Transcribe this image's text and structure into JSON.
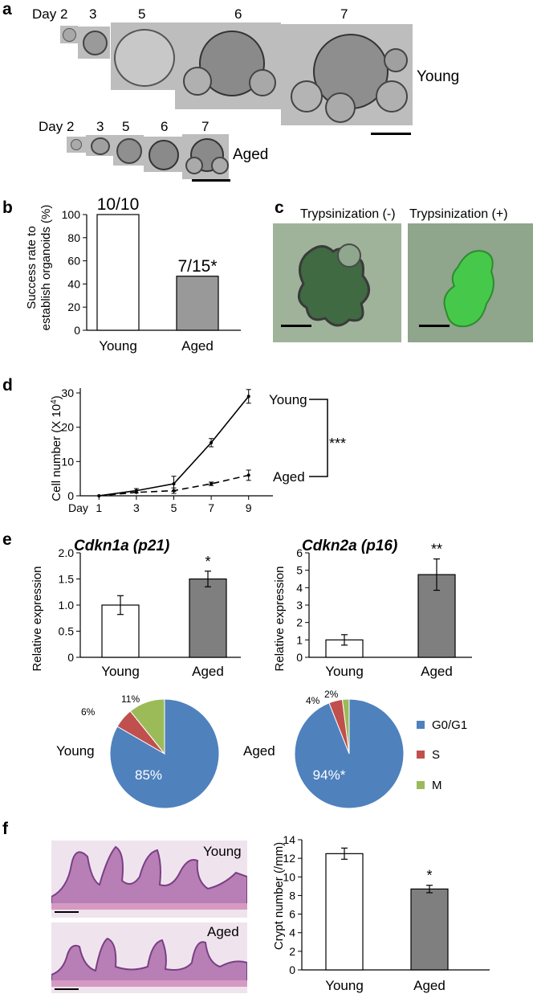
{
  "panel_a": {
    "letter": "a",
    "young_days": [
      "Day 2",
      "3",
      "5",
      "6",
      "7"
    ],
    "young_label": "Young",
    "aged_days": [
      "Day 2",
      "3",
      "5",
      "6",
      "7"
    ],
    "aged_label": "Aged"
  },
  "panel_b": {
    "letter": "b",
    "ylabel_line1": "Success rate to",
    "ylabel_line2": "establish organoids (%)",
    "yticks": [
      "0",
      "20",
      "40",
      "60",
      "80",
      "100"
    ],
    "categories": [
      "Young",
      "Aged"
    ],
    "values": [
      100,
      46.7
    ],
    "annotations": [
      "10/10",
      "7/15*"
    ],
    "colors": [
      "#ffffff",
      "#999999"
    ]
  },
  "panel_c": {
    "letter": "c",
    "left_title": "Trypsinization (-)",
    "right_title": "Trypsinization (+)"
  },
  "panel_d": {
    "letter": "d",
    "ylabel": "Cell number (X 10",
    "ylabel_sup": "4",
    "ylabel_close": ")",
    "yticks": [
      "0",
      "10",
      "20",
      "30"
    ],
    "xticks": [
      "Day",
      "1",
      "3",
      "5",
      "7",
      "9"
    ],
    "young_label": "Young",
    "aged_label": "Aged",
    "significance": "***"
  },
  "panel_e": {
    "letter": "e",
    "p21_title": "Cdkn1a (p21)",
    "p16_title": "Cdkn2a (p16)",
    "ylabel": "Relative expression",
    "p21_yticks": [
      "0",
      "0.5",
      "1.0",
      "1.5",
      "2.0"
    ],
    "p16_yticks": [
      "0",
      "1",
      "2",
      "3",
      "4",
      "5",
      "6"
    ],
    "categories": [
      "Young",
      "Aged"
    ],
    "p21_star": "*",
    "p16_star": "**",
    "pie_young_label": "Young",
    "pie_aged_label": "Aged",
    "young_pcts": [
      "85%",
      "6%",
      "11%"
    ],
    "aged_pcts": [
      "94%*",
      "4%",
      "2%"
    ],
    "legend": [
      "G0/G1",
      "S",
      "M"
    ],
    "legend_colors": [
      "#4f81bd",
      "#c0504d",
      "#9bbb59"
    ]
  },
  "panel_f": {
    "letter": "f",
    "young_label": "Young",
    "aged_label": "Aged",
    "ylabel": "Crypt number (/mm)",
    "yticks": [
      "0",
      "2",
      "4",
      "6",
      "8",
      "10",
      "12",
      "14"
    ],
    "categories": [
      "Young",
      "Aged"
    ],
    "star": "*"
  },
  "chart_data": [
    {
      "type": "bar",
      "categories": [
        "Young",
        "Aged"
      ],
      "values": [
        100,
        46.7
      ],
      "ylabel": "Success rate to establish organoids (%)",
      "ylim": [
        0,
        100
      ],
      "annotations": [
        "10/10",
        "7/15*"
      ]
    },
    {
      "type": "line",
      "x": [
        1,
        3,
        5,
        7,
        9
      ],
      "xlabel": "Day",
      "ylabel": "Cell number (X 10^4)",
      "ylim": [
        0,
        30
      ],
      "series": [
        {
          "name": "Young",
          "values": [
            0,
            1.5,
            3.5,
            15.5,
            29
          ],
          "errors": [
            0.2,
            0.6,
            2.2,
            1.2,
            2
          ]
        },
        {
          "name": "Aged",
          "values": [
            0,
            1.0,
            1.5,
            3.5,
            6
          ],
          "errors": [
            0.1,
            0.3,
            0.8,
            0.5,
            1.5
          ]
        }
      ],
      "annotations": [
        "***"
      ]
    },
    {
      "type": "bar",
      "title": "Cdkn1a (p21)",
      "categories": [
        "Young",
        "Aged"
      ],
      "values": [
        1.0,
        1.5
      ],
      "errors": [
        0.18,
        0.15
      ],
      "ylabel": "Relative expression",
      "ylim": [
        0,
        2.0
      ],
      "annotations": [
        "*"
      ]
    },
    {
      "type": "bar",
      "title": "Cdkn2a (p16)",
      "categories": [
        "Young",
        "Aged"
      ],
      "values": [
        1.0,
        4.75
      ],
      "errors": [
        0.3,
        0.9
      ],
      "ylabel": "Relative expression",
      "ylim": [
        0,
        6
      ],
      "annotations": [
        "**"
      ]
    },
    {
      "type": "pie",
      "categories": [
        "G0/G1",
        "S",
        "M"
      ],
      "values": [
        85,
        6,
        11
      ],
      "label": "Young"
    },
    {
      "type": "pie",
      "categories": [
        "G0/G1",
        "S",
        "M"
      ],
      "values": [
        94,
        4,
        2
      ],
      "label": "Aged"
    },
    {
      "type": "bar",
      "categories": [
        "Young",
        "Aged"
      ],
      "values": [
        12.5,
        8.7
      ],
      "errors": [
        0.6,
        0.4
      ],
      "ylabel": "Crypt number (/mm)",
      "ylim": [
        0,
        14
      ],
      "annotations": [
        "*"
      ]
    }
  ]
}
